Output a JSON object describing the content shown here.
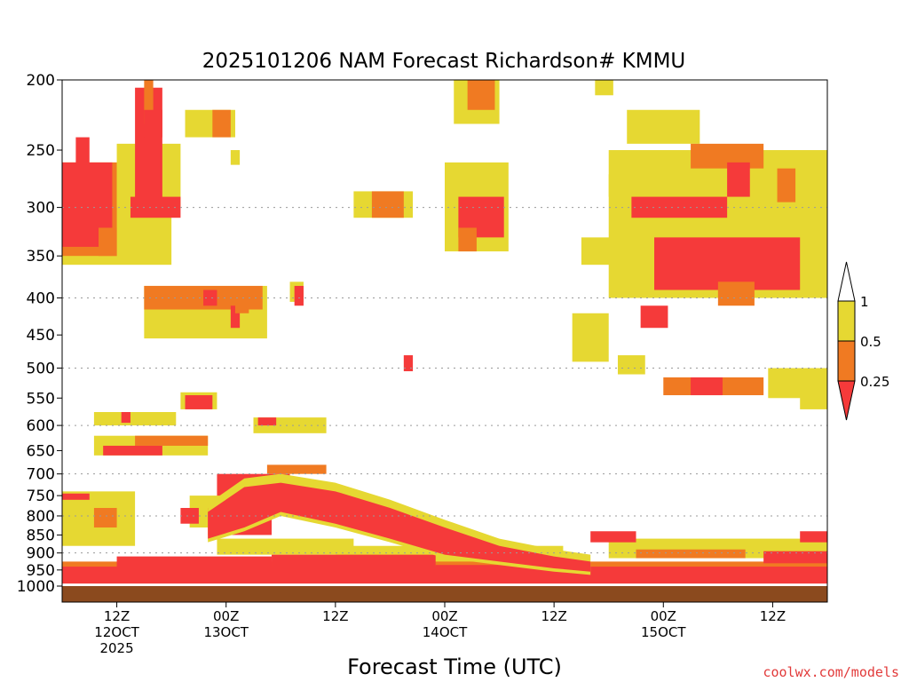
{
  "chart_data": {
    "type": "heatmap",
    "title": "2025101206 NAM Forecast Richardson# KMMU",
    "xlabel": "Forecast Time (UTC)",
    "credit": "coolwx.com/models",
    "colors": {
      "lt025": "#f53a3a",
      "r025_05": "#f07a22",
      "r05_1": "#e6d832",
      "ground": "#8b4a1e"
    },
    "y_scale": "log-pressure",
    "ylim": [
      1000,
      200
    ],
    "y_ticks": [
      200,
      250,
      300,
      350,
      400,
      450,
      500,
      550,
      600,
      650,
      700,
      750,
      800,
      850,
      900,
      950,
      1000
    ],
    "y_gridlines": [
      300,
      400,
      500,
      600,
      700,
      800,
      900
    ],
    "x_unit": "forecast hour (from 2025-10-12 06Z)",
    "xlim": [
      0,
      84
    ],
    "x_ticks": [
      {
        "hour": 6,
        "lines": [
          "12Z",
          "12OCT",
          "2025"
        ]
      },
      {
        "hour": 18,
        "lines": [
          "00Z",
          "13OCT"
        ]
      },
      {
        "hour": 30,
        "lines": [
          "12Z"
        ]
      },
      {
        "hour": 42,
        "lines": [
          "00Z",
          "14OCT"
        ]
      },
      {
        "hour": 54,
        "lines": [
          "12Z"
        ]
      },
      {
        "hour": 66,
        "lines": [
          "00Z",
          "15OCT"
        ]
      },
      {
        "hour": 78,
        "lines": [
          "12Z"
        ]
      }
    ],
    "legend": {
      "levels": [
        "1",
        "0.5",
        "0.25"
      ],
      "bins": [
        "< 0.25",
        "0.25 - 0.5",
        "0.5 - 1",
        "> 1"
      ],
      "placement": "right"
    },
    "ground_level": 1000,
    "regions": [
      {
        "cls": "r05_1",
        "x": [
          0,
          12
        ],
        "p": [
          260,
          360
        ]
      },
      {
        "cls": "r025_05",
        "x": [
          0,
          6
        ],
        "p": [
          260,
          350
        ]
      },
      {
        "cls": "lt025",
        "x": [
          0,
          5.5
        ],
        "p": [
          260,
          340
        ]
      },
      {
        "cls": "r025_05",
        "x": [
          4,
          6
        ],
        "p": [
          320,
          350
        ]
      },
      {
        "cls": "lt025",
        "x": [
          1.5,
          3
        ],
        "p": [
          240,
          320
        ]
      },
      {
        "cls": "r05_1",
        "x": [
          6,
          13
        ],
        "p": [
          245,
          300
        ]
      },
      {
        "cls": "lt025",
        "x": [
          8,
          11
        ],
        "p": [
          205,
          305
        ]
      },
      {
        "cls": "r025_05",
        "x": [
          9,
          10
        ],
        "p": [
          200,
          230
        ]
      },
      {
        "cls": "lt025",
        "x": [
          9,
          11
        ],
        "p": [
          220,
          240
        ]
      },
      {
        "cls": "lt025",
        "x": [
          7.5,
          13
        ],
        "p": [
          290,
          310
        ]
      },
      {
        "cls": "r05_1",
        "x": [
          13.5,
          19
        ],
        "p": [
          220,
          240
        ]
      },
      {
        "cls": "r025_05",
        "x": [
          16.5,
          18.5
        ],
        "p": [
          220,
          240
        ]
      },
      {
        "cls": "r05_1",
        "x": [
          18.5,
          19.5
        ],
        "p": [
          250,
          262
        ]
      },
      {
        "cls": "r05_1",
        "x": [
          9,
          22.5
        ],
        "p": [
          385,
          455
        ]
      },
      {
        "cls": "r025_05",
        "x": [
          9,
          22
        ],
        "p": [
          385,
          415
        ]
      },
      {
        "cls": "lt025",
        "x": [
          15.5,
          17
        ],
        "p": [
          390,
          410
        ]
      },
      {
        "cls": "lt025",
        "x": [
          18.5,
          19.5
        ],
        "p": [
          410,
          440
        ]
      },
      {
        "cls": "r025_05",
        "x": [
          19,
          20.5
        ],
        "p": [
          390,
          420
        ]
      },
      {
        "cls": "r05_1",
        "x": [
          25,
          26.5
        ],
        "p": [
          380,
          405
        ]
      },
      {
        "cls": "lt025",
        "x": [
          25.5,
          26.5
        ],
        "p": [
          385,
          410
        ]
      },
      {
        "cls": "r05_1",
        "x": [
          32,
          38.5
        ],
        "p": [
          285,
          310
        ]
      },
      {
        "cls": "r025_05",
        "x": [
          34,
          37.5
        ],
        "p": [
          285,
          310
        ]
      },
      {
        "cls": "r05_1",
        "x": [
          42,
          49
        ],
        "p": [
          260,
          345
        ]
      },
      {
        "cls": "lt025",
        "x": [
          43.5,
          48.5
        ],
        "p": [
          290,
          330
        ]
      },
      {
        "cls": "r025_05",
        "x": [
          43.5,
          45.5
        ],
        "p": [
          320,
          345
        ]
      },
      {
        "cls": "r05_1",
        "x": [
          43,
          48
        ],
        "p": [
          200,
          230
        ]
      },
      {
        "cls": "r025_05",
        "x": [
          44.5,
          47.5
        ],
        "p": [
          200,
          220
        ]
      },
      {
        "cls": "r05_1",
        "x": [
          57,
          61
        ],
        "p": [
          330,
          360
        ]
      },
      {
        "cls": "r05_1",
        "x": [
          60,
          60.5
        ],
        "p": [
          270,
          290
        ]
      },
      {
        "cls": "r05_1",
        "x": [
          58.5,
          60.5
        ],
        "p": [
          200,
          210
        ]
      },
      {
        "cls": "r05_1",
        "x": [
          62,
          70
        ],
        "p": [
          220,
          245
        ]
      },
      {
        "cls": "r05_1",
        "x": [
          60,
          84
        ],
        "p": [
          250,
          400
        ]
      },
      {
        "cls": "lt025",
        "x": [
          62.5,
          73
        ],
        "p": [
          290,
          310
        ]
      },
      {
        "cls": "lt025",
        "x": [
          65,
          81
        ],
        "p": [
          330,
          390
        ]
      },
      {
        "cls": "r025_05",
        "x": [
          69,
          77
        ],
        "p": [
          245,
          265
        ]
      },
      {
        "cls": "lt025",
        "x": [
          73,
          75.5
        ],
        "p": [
          260,
          290
        ]
      },
      {
        "cls": "r025_05",
        "x": [
          78.5,
          80.5
        ],
        "p": [
          265,
          295
        ]
      },
      {
        "cls": "r025_05",
        "x": [
          72,
          76
        ],
        "p": [
          380,
          410
        ]
      },
      {
        "cls": "r05_1",
        "x": [
          56,
          60
        ],
        "p": [
          420,
          490
        ]
      },
      {
        "cls": "lt025",
        "x": [
          63.5,
          66.5
        ],
        "p": [
          410,
          440
        ]
      },
      {
        "cls": "r05_1",
        "x": [
          61,
          64
        ],
        "p": [
          480,
          510
        ]
      },
      {
        "cls": "r025_05",
        "x": [
          66,
          77
        ],
        "p": [
          515,
          545
        ]
      },
      {
        "cls": "lt025",
        "x": [
          69,
          72.5
        ],
        "p": [
          515,
          545
        ]
      },
      {
        "cls": "r05_1",
        "x": [
          77.5,
          84
        ],
        "p": [
          500,
          550
        ]
      },
      {
        "cls": "r05_1",
        "x": [
          81,
          84
        ],
        "p": [
          540,
          570
        ]
      },
      {
        "cls": "lt025",
        "x": [
          37.5,
          38.5
        ],
        "p": [
          480,
          505
        ]
      },
      {
        "cls": "r05_1",
        "x": [
          13,
          17
        ],
        "p": [
          540,
          570
        ]
      },
      {
        "cls": "lt025",
        "x": [
          13.5,
          16.5
        ],
        "p": [
          545,
          570
        ]
      },
      {
        "cls": "r05_1",
        "x": [
          3.5,
          12.5
        ],
        "p": [
          575,
          600
        ]
      },
      {
        "cls": "lt025",
        "x": [
          6.5,
          7.5
        ],
        "p": [
          575,
          595
        ]
      },
      {
        "cls": "r05_1",
        "x": [
          3.5,
          16
        ],
        "p": [
          620,
          660
        ]
      },
      {
        "cls": "r025_05",
        "x": [
          8,
          16
        ],
        "p": [
          620,
          640
        ]
      },
      {
        "cls": "lt025",
        "x": [
          4.5,
          11
        ],
        "p": [
          640,
          660
        ]
      },
      {
        "cls": "r05_1",
        "x": [
          21,
          29
        ],
        "p": [
          585,
          615
        ]
      },
      {
        "cls": "lt025",
        "x": [
          21.5,
          23.5
        ],
        "p": [
          585,
          600
        ]
      },
      {
        "cls": "r025_05",
        "x": [
          22.5,
          29
        ],
        "p": [
          680,
          700
        ]
      },
      {
        "cls": "lt025",
        "x": [
          17,
          25
        ],
        "p": [
          700,
          770
        ]
      },
      {
        "cls": "r05_1",
        "x": [
          14,
          18
        ],
        "p": [
          750,
          830
        ]
      },
      {
        "cls": "lt025",
        "x": [
          16,
          23
        ],
        "p": [
          780,
          850
        ]
      },
      {
        "cls": "lt025",
        "x": [
          13,
          15
        ],
        "p": [
          780,
          820
        ]
      },
      {
        "cls": "r05_1",
        "x": [
          0,
          8
        ],
        "p": [
          740,
          880
        ]
      },
      {
        "cls": "r025_05",
        "x": [
          3.5,
          6
        ],
        "p": [
          780,
          830
        ]
      },
      {
        "cls": "lt025",
        "x": [
          0,
          3
        ],
        "p": [
          745,
          760
        ]
      },
      {
        "cls": "r05_1",
        "x": [
          17,
          32
        ],
        "p": [
          860,
          905
        ]
      },
      {
        "cls": "r05_1",
        "x": [
          30,
          55
        ],
        "p": [
          880,
          930
        ]
      },
      {
        "cls": "r05_1",
        "x": [
          60,
          84
        ],
        "p": [
          860,
          915
        ]
      },
      {
        "cls": "r025_05",
        "x": [
          63,
          75
        ],
        "p": [
          890,
          915
        ]
      },
      {
        "cls": "lt025",
        "x": [
          58,
          63
        ],
        "p": [
          840,
          870
        ]
      },
      {
        "cls": "lt025",
        "x": [
          81,
          84
        ],
        "p": [
          840,
          870
        ]
      },
      {
        "cls": "r025_05",
        "x": [
          0,
          84
        ],
        "p": [
          925,
          975
        ]
      },
      {
        "cls": "lt025",
        "x": [
          0,
          84
        ],
        "p": [
          940,
          992
        ]
      },
      {
        "cls": "lt025",
        "x": [
          6,
          23
        ],
        "p": [
          910,
          945
        ]
      },
      {
        "cls": "lt025",
        "x": [
          23,
          41
        ],
        "p": [
          905,
          945
        ]
      },
      {
        "cls": "lt025",
        "x": [
          41,
          55
        ],
        "p": [
          935,
          960
        ]
      },
      {
        "cls": "lt025",
        "x": [
          77,
          84
        ],
        "p": [
          895,
          930
        ]
      }
    ],
    "band": {
      "cls": "lt025",
      "yellow_edge_cls": "r05_1",
      "points": [
        {
          "hour": 16,
          "top": 790,
          "bot": 860
        },
        {
          "hour": 20,
          "top": 730,
          "bot": 830
        },
        {
          "hour": 24,
          "top": 720,
          "bot": 790
        },
        {
          "hour": 30,
          "top": 740,
          "bot": 820
        },
        {
          "hour": 36,
          "top": 780,
          "bot": 860
        },
        {
          "hour": 42,
          "top": 830,
          "bot": 905
        },
        {
          "hour": 48,
          "top": 880,
          "bot": 925
        },
        {
          "hour": 54,
          "top": 910,
          "bot": 945
        },
        {
          "hour": 58,
          "top": 925,
          "bot": 955
        }
      ]
    }
  }
}
